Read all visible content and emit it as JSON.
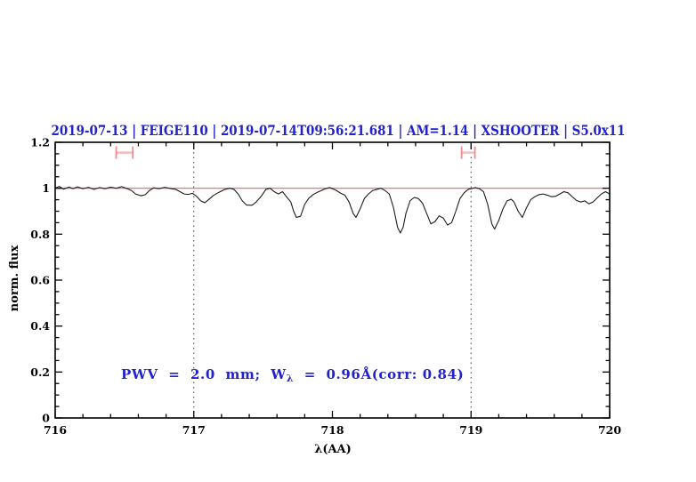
{
  "title": {
    "text": "2019-07-13 | FEIGE110 | 2019-07-14T09:56:21.681 | AM=1.14 | XSHOOTER | S5.0x11"
  },
  "annotation": {
    "prefix": "PWV  =  2.0  mm;  W",
    "subscript": "λ",
    "suffix": "  =  0.96Å(corr: 0.84)"
  },
  "colors": {
    "text_blue": "#2222cc",
    "spectrum": "#1c1c1c",
    "continuum_red": "#e86565",
    "marker_red": "#ee8a8a",
    "marker_bar": "#f6bcbc",
    "dotted_line": "#3c3c3c",
    "frame": "#000000"
  },
  "chart_data": {
    "type": "line",
    "title": "2019-07-13 | FEIGE110 | 2019-07-14T09:56:21.681 | AM=1.14 | XSHOOTER | S5.0x11",
    "xlabel": "λ(AA)",
    "ylabel": "norm. flux",
    "xlim": [
      716,
      720
    ],
    "ylim": [
      0,
      1.2
    ],
    "grid": "off",
    "x_ticks": {
      "values": [
        716,
        717,
        718,
        719,
        720
      ],
      "labels": [
        "716",
        "717",
        "718",
        "719",
        "720"
      ]
    },
    "y_ticks": {
      "values": [
        0,
        0.2,
        0.4,
        0.6,
        0.8,
        1,
        1.2
      ],
      "labels": [
        "0",
        "0.2",
        "0.4",
        "0.6",
        "0.8",
        "1",
        "1.2"
      ]
    },
    "x_minor_step": 0.2,
    "y_minor_step": 0.05,
    "continuum_line_y": 1.0,
    "dotted_vlines_x": [
      717,
      719
    ],
    "markers": [
      {
        "x": 716.5,
        "half_width": 0.06,
        "y": 1.155,
        "half_height": 0.027
      },
      {
        "x": 718.98,
        "half_width": 0.048,
        "y": 1.155,
        "half_height": 0.027
      }
    ],
    "series": [
      {
        "name": "normalized-spectrum",
        "x": [
          716.0,
          716.03,
          716.06,
          716.1,
          716.13,
          716.16,
          716.2,
          716.24,
          716.28,
          716.32,
          716.36,
          716.4,
          716.44,
          716.48,
          716.52,
          716.55,
          716.58,
          716.62,
          716.65,
          716.68,
          716.71,
          716.75,
          716.79,
          716.83,
          716.87,
          716.9,
          716.93,
          716.96,
          716.99,
          717.02,
          717.05,
          717.08,
          717.11,
          717.14,
          717.18,
          717.22,
          717.26,
          717.29,
          717.32,
          717.35,
          717.38,
          717.42,
          717.45,
          717.49,
          717.52,
          717.55,
          717.58,
          717.61,
          717.64,
          717.67,
          717.7,
          717.72,
          717.74,
          717.77,
          717.8,
          717.83,
          717.86,
          717.89,
          717.92,
          717.95,
          717.98,
          718.0,
          718.03,
          718.06,
          718.09,
          718.12,
          718.15,
          718.17,
          718.2,
          718.23,
          718.26,
          718.29,
          718.32,
          718.35,
          718.38,
          718.41,
          718.44,
          718.47,
          718.49,
          718.51,
          718.53,
          718.56,
          718.59,
          718.62,
          718.65,
          718.68,
          718.71,
          718.74,
          718.77,
          718.8,
          718.83,
          718.86,
          718.89,
          718.92,
          718.95,
          718.98,
          719.0,
          719.03,
          719.06,
          719.09,
          719.12,
          719.15,
          719.17,
          719.2,
          719.23,
          719.26,
          719.29,
          719.31,
          719.34,
          719.37,
          719.4,
          719.43,
          719.46,
          719.49,
          719.52,
          719.55,
          719.58,
          719.61,
          719.64,
          719.67,
          719.7,
          719.73,
          719.76,
          719.79,
          719.82,
          719.85,
          719.88,
          719.91,
          719.94,
          719.97,
          720.0
        ],
        "y": [
          1.0,
          1.008,
          0.996,
          1.005,
          0.998,
          1.006,
          0.998,
          1.004,
          0.995,
          1.003,
          0.998,
          1.005,
          1.0,
          1.007,
          0.998,
          0.99,
          0.975,
          0.967,
          0.972,
          0.99,
          1.002,
          0.998,
          1.004,
          0.999,
          0.995,
          0.985,
          0.975,
          0.973,
          0.978,
          0.965,
          0.945,
          0.937,
          0.952,
          0.968,
          0.982,
          0.994,
          1.0,
          0.995,
          0.975,
          0.945,
          0.927,
          0.926,
          0.94,
          0.968,
          0.995,
          1.0,
          0.985,
          0.975,
          0.985,
          0.962,
          0.94,
          0.9,
          0.873,
          0.878,
          0.93,
          0.957,
          0.972,
          0.982,
          0.99,
          0.998,
          1.003,
          0.998,
          0.99,
          0.978,
          0.97,
          0.94,
          0.89,
          0.873,
          0.91,
          0.955,
          0.975,
          0.99,
          0.995,
          1.0,
          0.99,
          0.975,
          0.917,
          0.83,
          0.805,
          0.83,
          0.89,
          0.945,
          0.96,
          0.955,
          0.935,
          0.89,
          0.845,
          0.855,
          0.88,
          0.87,
          0.84,
          0.85,
          0.9,
          0.955,
          0.98,
          0.995,
          0.998,
          1.003,
          0.998,
          0.985,
          0.93,
          0.845,
          0.822,
          0.86,
          0.91,
          0.945,
          0.952,
          0.94,
          0.9,
          0.873,
          0.915,
          0.95,
          0.963,
          0.972,
          0.975,
          0.97,
          0.963,
          0.965,
          0.975,
          0.985,
          0.98,
          0.963,
          0.947,
          0.94,
          0.945,
          0.932,
          0.94,
          0.958,
          0.975,
          0.985,
          0.975
        ]
      }
    ]
  }
}
